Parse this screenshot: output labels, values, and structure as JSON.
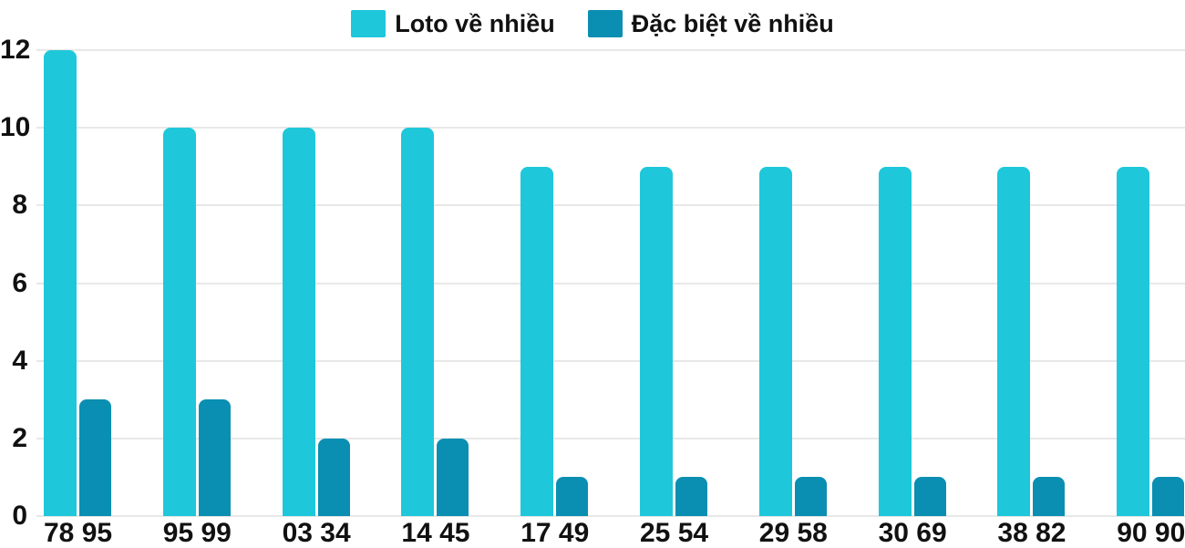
{
  "chart_data": {
    "type": "bar",
    "title": "",
    "xlabel": "",
    "ylabel": "",
    "categories": [
      "78 95",
      "95 99",
      "03 34",
      "14 45",
      "17 49",
      "25 54",
      "29 58",
      "30 69",
      "38 82",
      "90 90"
    ],
    "series": [
      {
        "name": "Loto về nhiều",
        "color": "#1fc7da",
        "values": [
          12,
          10,
          10,
          10,
          9,
          9,
          9,
          9,
          9,
          9
        ]
      },
      {
        "name": "Đặc biệt về nhiều",
        "color": "#0a8fb2",
        "values": [
          3,
          3,
          2,
          2,
          1,
          1,
          1,
          1,
          1,
          1
        ]
      }
    ],
    "yticks": [
      0,
      2,
      4,
      6,
      8,
      10,
      12
    ],
    "ylim": [
      0,
      12
    ],
    "grid": true,
    "legend_position": "top-center",
    "gridline_color": "#e8e8e8",
    "text_color": "#111111",
    "background_color": "#ffffff"
  }
}
